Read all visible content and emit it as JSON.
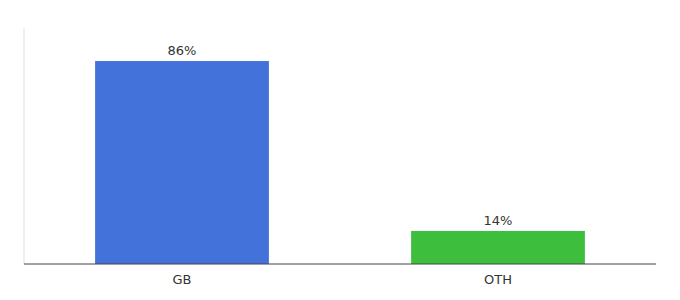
{
  "chart_data": {
    "type": "bar",
    "categories": [
      "GB",
      "OTH"
    ],
    "values": [
      86,
      14
    ],
    "value_labels": [
      "86%",
      "14%"
    ],
    "colors": [
      "#4472db",
      "#3dbf3d"
    ],
    "ylim": [
      0,
      100
    ],
    "data_labels": true,
    "tick_labels": "x"
  }
}
